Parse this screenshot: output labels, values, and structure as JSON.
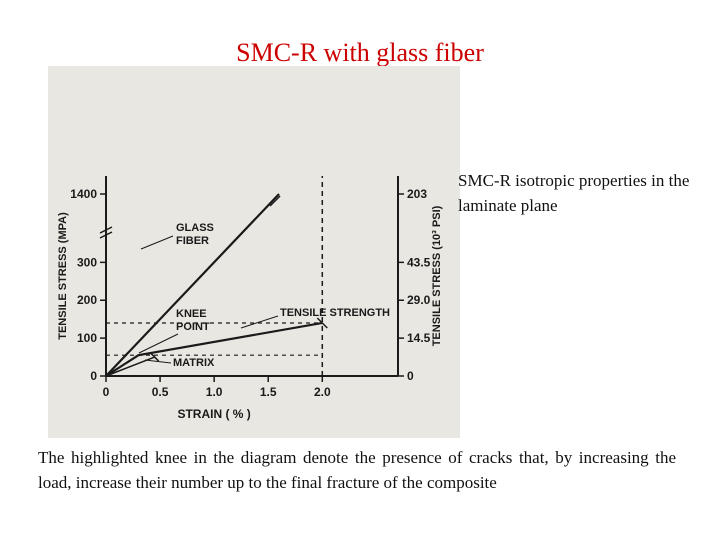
{
  "slide": {
    "title": "SMC-R with glass fiber",
    "side_note": "SMC-R isotropic properties in the laminate plane",
    "caption": "The highlighted knee in the diagram denote the presence of cracks that, by increasing the load, increase their number up to the final fracture of the composite"
  },
  "colors": {
    "title": "#cc0000",
    "figure_background": "#e9e7e1",
    "ink": "#1a1a1a"
  },
  "chart_data": {
    "type": "line",
    "title": "",
    "xlabel": "STRAIN ( % )",
    "ylabel_left": "TENSILE STRESS (MPA)",
    "ylabel_right": "TENSILE STRESS (10³ PSI)",
    "x_ticks": [
      "0",
      "0.5",
      "1.0",
      "1.5",
      "2.0"
    ],
    "x_tick_values": [
      0,
      0.5,
      1.0,
      1.5,
      2.0
    ],
    "y_left_ticks": [
      "0",
      "100",
      "200",
      "300",
      "1400"
    ],
    "y_left_tick_values": [
      0,
      100,
      200,
      300,
      1400
    ],
    "y_right_ticks": [
      "0",
      "14.5",
      "29.0",
      "43.5",
      "203"
    ],
    "y_right_tick_values": [
      0,
      14.5,
      29.0,
      43.5,
      203
    ],
    "xlim": [
      0,
      2.7
    ],
    "y_axis_break": [
      330,
      1350
    ],
    "series": [
      {
        "name": "GLASS FIBER",
        "x": [
          0,
          1.6
        ],
        "y": [
          0,
          1400
        ]
      },
      {
        "name": "",
        "x": [
          0,
          0.3,
          2.0
        ],
        "y": [
          0,
          55,
          140
        ]
      },
      {
        "name": "MATRIX",
        "x": [
          0,
          0.45
        ],
        "y": [
          0,
          50
        ]
      }
    ],
    "annotations": [
      {
        "text": "GLASS FIBER",
        "x": 0.5,
        "y": 290
      },
      {
        "text": "KNEE POINT",
        "x": 0.3,
        "y": 55
      },
      {
        "text": "TENSILE STRENGTH",
        "x": 2.0,
        "y": 140
      },
      {
        "text": "MATRIX",
        "x": 0.45,
        "y": 45
      }
    ],
    "reference_lines": [
      {
        "orientation": "vertical",
        "x": 2.0
      },
      {
        "orientation": "horizontal",
        "y": 140
      },
      {
        "orientation": "horizontal",
        "y": 55
      }
    ],
    "grid": false,
    "legend": "none"
  }
}
